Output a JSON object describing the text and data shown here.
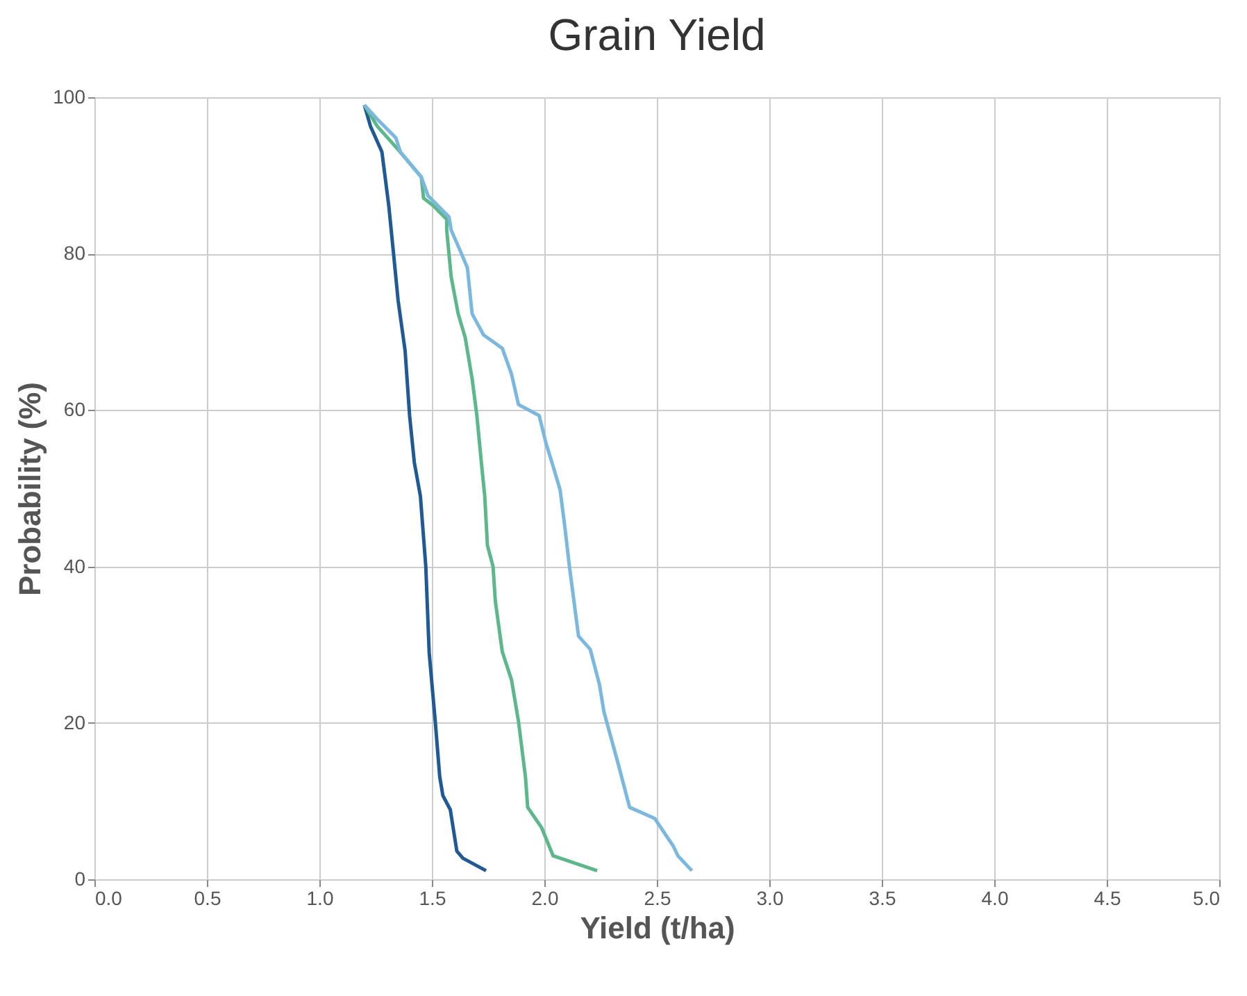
{
  "chart_data": {
    "type": "line",
    "title": "Grain Yield",
    "xlabel": "Yield (t/ha)",
    "ylabel": "Probability (%)",
    "xlim": [
      0,
      5
    ],
    "xticks": [
      {
        "value": 0,
        "label": "0.0"
      },
      {
        "value": 0.5,
        "label": "0.5"
      },
      {
        "value": 1,
        "label": "1.0"
      },
      {
        "value": 1.5,
        "label": "1.5"
      },
      {
        "value": 2,
        "label": "2.0"
      },
      {
        "value": 2.5,
        "label": "2.5"
      },
      {
        "value": 3,
        "label": "3.0"
      },
      {
        "value": 3.5,
        "label": "3.5"
      },
      {
        "value": 4,
        "label": "4.0"
      },
      {
        "value": 4.5,
        "label": "4.5"
      },
      {
        "value": 5,
        "label": "5.0"
      }
    ],
    "ylim": [
      0,
      100
    ],
    "yticks": [
      0,
      20,
      40,
      60,
      80,
      100
    ],
    "grid": true,
    "legend": false,
    "marker": "none",
    "line_style": "solid",
    "series": [
      {
        "color": "#1f5a96",
        "x": [
          1.2,
          1.227,
          1.278,
          1.309,
          1.329,
          1.35,
          1.381,
          1.401,
          1.422,
          1.449,
          1.473,
          1.488,
          1.515,
          1.535,
          1.549,
          1.582,
          1.611,
          1.638,
          1.741
        ],
        "values": [
          99,
          96.3,
          93,
          86,
          80.2,
          74,
          67.6,
          59.3,
          53.3,
          49,
          40,
          29,
          20.2,
          13.1,
          10.7,
          8.9,
          3.6,
          2.7,
          1.1
        ]
      },
      {
        "color": "#5cb88a",
        "x": [
          1.2,
          1.257,
          1.35,
          1.453,
          1.463,
          1.504,
          1.566,
          1.566,
          1.586,
          1.617,
          1.648,
          1.679,
          1.7,
          1.72,
          1.735,
          1.747,
          1.772,
          1.782,
          1.813,
          1.854,
          1.885,
          1.916,
          1.926,
          1.988,
          2.039,
          2.235
        ],
        "values": [
          99,
          96.3,
          93.3,
          89.8,
          87.1,
          86.2,
          84.4,
          83,
          77,
          72.3,
          69.3,
          64,
          59.3,
          53.3,
          49,
          42.7,
          40,
          35.6,
          29.1,
          25.5,
          20.2,
          13.1,
          9.2,
          6.6,
          3,
          1.1
        ]
      },
      {
        "color": "#7ab8e0",
        "x": [
          1.2,
          1.257,
          1.34,
          1.36,
          1.453,
          1.483,
          1.576,
          1.586,
          1.627,
          1.658,
          1.679,
          1.73,
          1.813,
          1.854,
          1.885,
          1.977,
          2.008,
          2.039,
          2.07,
          2.091,
          2.111,
          2.152,
          2.204,
          2.245,
          2.265,
          2.327,
          2.379,
          2.49,
          2.574,
          2.594,
          2.656
        ],
        "values": [
          99,
          97.2,
          94.8,
          93,
          89.8,
          87.4,
          84.7,
          83,
          80.3,
          78.2,
          72.3,
          69.6,
          67.9,
          64.6,
          60.7,
          59.3,
          55.7,
          52.8,
          49.8,
          45.1,
          40.1,
          31.1,
          29.4,
          24.9,
          21.4,
          14.9,
          9.2,
          7.8,
          4.2,
          3,
          1.1
        ]
      }
    ]
  }
}
